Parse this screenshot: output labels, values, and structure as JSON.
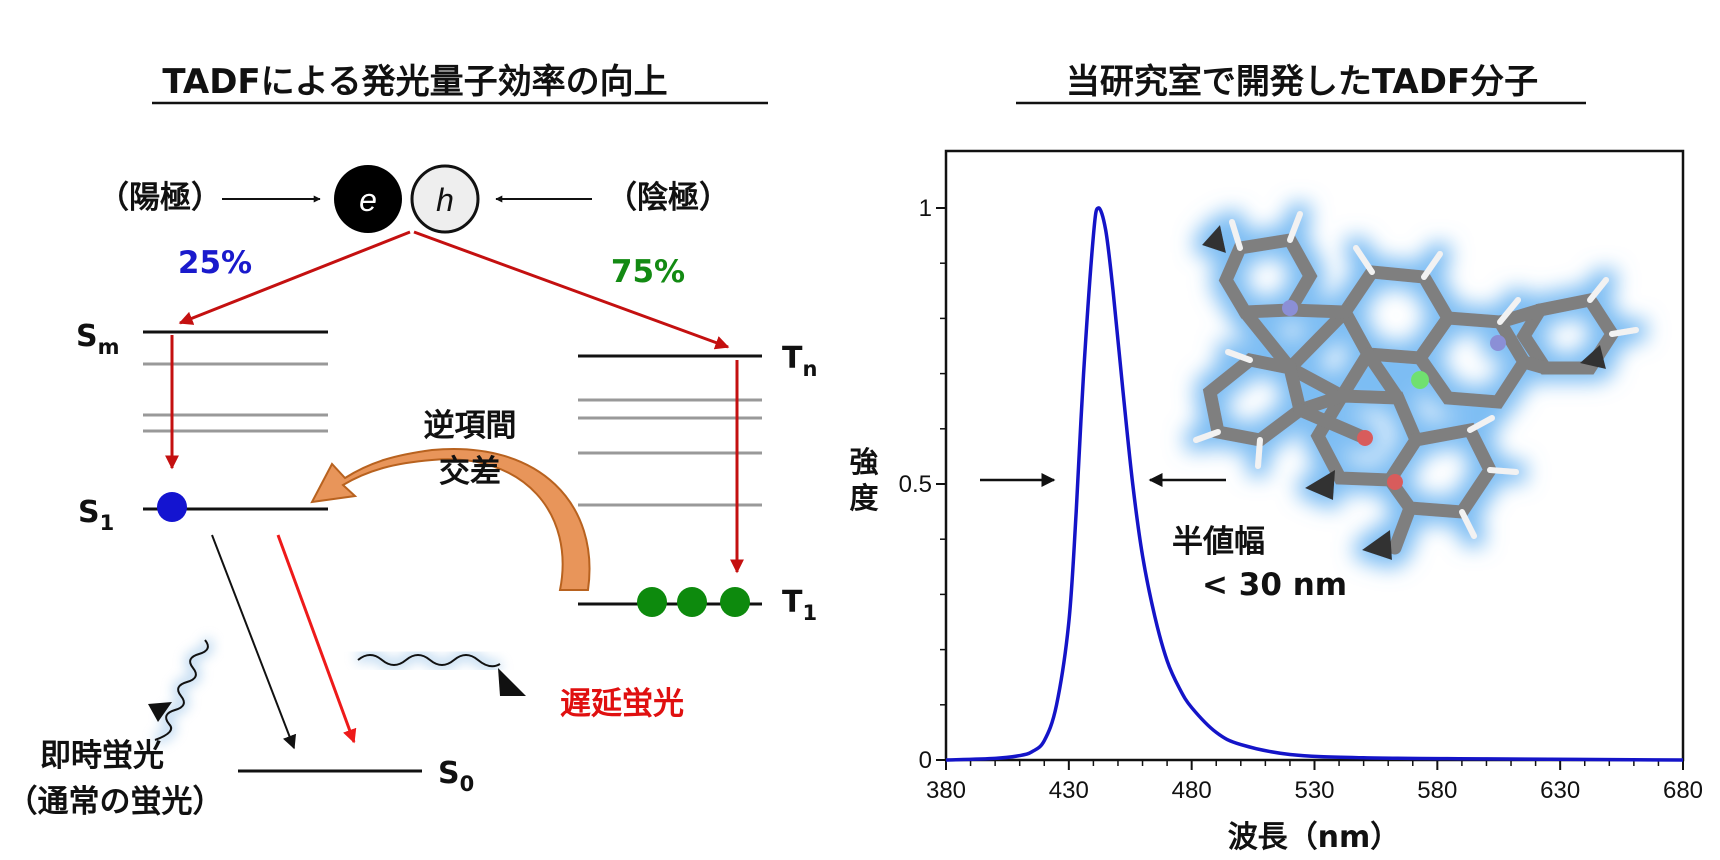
{
  "left_panel": {
    "title": "TADFによる発光量子効率の向上",
    "anode": "（陽極）",
    "cathode": "（陰極）",
    "electron": "e",
    "hole": "h",
    "singlet_pct": "25%",
    "triplet_pct": "75%",
    "levels": {
      "sm_base": "S",
      "sm_sub": "m",
      "s1_base": "S",
      "s1_sub": "1",
      "tn_base": "T",
      "tn_sub": "n",
      "t1_base": "T",
      "t1_sub": "1",
      "s0_base": "S",
      "s0_sub": "0"
    },
    "risc_line1": "逆項間",
    "risc_line2": "交差",
    "prompt_line1": "即時蛍光",
    "prompt_line2": "（通常の蛍光）",
    "delayed": "遅延蛍光",
    "colors": {
      "singlet_pct": "#1a1acc",
      "triplet_pct": "#138a13",
      "arrow_red": "#c41010",
      "delayed": "#e01010",
      "risc_arrow": "#e8955a"
    }
  },
  "right_panel": {
    "title": "当研究室で開発したTADF分子",
    "fwhm_line1": "半値幅",
    "fwhm_line2": "< 30 nm"
  },
  "chart_data": {
    "type": "line",
    "xlabel": "波長（nm）",
    "ylabel": "強度",
    "xlim": [
      380,
      680
    ],
    "ylim": [
      0,
      1.1
    ],
    "xticks": [
      "380",
      "430",
      "480",
      "530",
      "580",
      "630",
      "680"
    ],
    "yticks": [
      "0",
      "0.5",
      "1"
    ],
    "series": [
      {
        "color": "#1414c8",
        "x": [
          380,
          400,
          410,
          415,
          420,
          425,
          430,
          433,
          436,
          440,
          442,
          445,
          448,
          452,
          456,
          460,
          465,
          470,
          475,
          480,
          490,
          500,
          520,
          550,
          600,
          680
        ],
        "y": [
          0.0,
          0.003,
          0.008,
          0.015,
          0.035,
          0.1,
          0.25,
          0.45,
          0.7,
          0.95,
          1.0,
          0.96,
          0.85,
          0.67,
          0.5,
          0.37,
          0.26,
          0.18,
          0.13,
          0.095,
          0.05,
          0.028,
          0.01,
          0.004,
          0.002,
          0.0
        ]
      }
    ]
  }
}
